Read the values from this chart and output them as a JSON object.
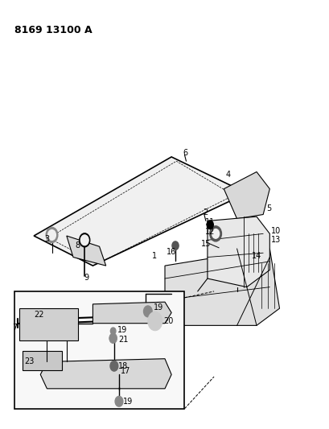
{
  "title": "8169 13100 A",
  "bg_color": "#ffffff",
  "line_color": "#000000",
  "figsize": [
    4.1,
    5.33
  ],
  "dpi": 100,
  "title_fontsize": 9,
  "label_fontsize": 7
}
